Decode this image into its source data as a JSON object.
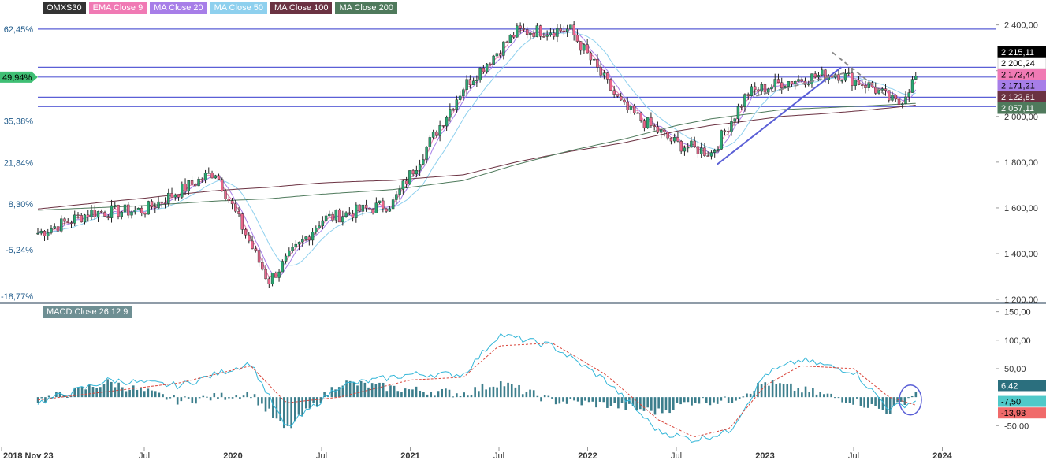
{
  "legend": [
    {
      "label": "OMXS30",
      "color": "#333333"
    },
    {
      "label": "EMA Close 9",
      "color": "#f07ab4"
    },
    {
      "label": "MA Close 20",
      "color": "#a77ee8"
    },
    {
      "label": "MA Close 50",
      "color": "#8ed0ee"
    },
    {
      "label": "MA Close 100",
      "color": "#6b3242"
    },
    {
      "label": "MA Close 200",
      "color": "#4f7a5c"
    }
  ],
  "macd_title": "MACD Close 26 12 9",
  "x_axis": {
    "ticks": [
      {
        "label": "2018 Nov 23",
        "bold": true
      },
      {
        "label": "Jul",
        "bold": false
      },
      {
        "label": "2020",
        "bold": true
      },
      {
        "label": "Jul",
        "bold": false
      },
      {
        "label": "2021",
        "bold": true
      },
      {
        "label": "Jul",
        "bold": false
      },
      {
        "label": "2022",
        "bold": true
      },
      {
        "label": "Jul",
        "bold": false
      },
      {
        "label": "2023",
        "bold": true
      },
      {
        "label": "Jul",
        "bold": false
      },
      {
        "label": "2024",
        "bold": true
      }
    ]
  },
  "price_axis": {
    "ticks": [
      "2 400,00",
      "2 200,00",
      "2 000,00",
      "1 800,00",
      "1 600,00",
      "1 400,00",
      "1 200,00"
    ],
    "tick_values": [
      2400,
      2200,
      2000,
      1800,
      1600,
      1400,
      1200
    ],
    "range": [
      1190,
      2440
    ]
  },
  "percent_axis": {
    "ticks": [
      "62,45%",
      "49,94%",
      "35,38%",
      "21,84%",
      "8,30%",
      "-5,24%",
      "-18,77%"
    ],
    "tick_values": [
      2382,
      2172,
      1980,
      1798,
      1617,
      1418,
      1214
    ],
    "current_label": "49,94%"
  },
  "price_badges": [
    {
      "label": "2 215,11",
      "value": 2215.11,
      "color": "#000000"
    },
    {
      "label": "2 200,24",
      "value": 2200.24,
      "color": "#ffffff"
    },
    {
      "label": "2 172,44",
      "value": 2172.44,
      "color": "#f07ab4"
    },
    {
      "label": "2 171,21",
      "value": 2171.21,
      "color": "#a77ee8"
    },
    {
      "label": "2 122,81",
      "value": 2122.81,
      "color": "#6b3242"
    },
    {
      "label": "2 057,11",
      "value": 2057.11,
      "color": "#4f7a5c"
    }
  ],
  "macd_axis": {
    "ticks": [
      "150,00",
      "100,00",
      "50,00",
      "-50,00"
    ],
    "tick_values": [
      150,
      100,
      50,
      -50
    ],
    "range": [
      -80,
      155
    ]
  },
  "macd_badges": [
    {
      "label": "6,42",
      "value": 6.42,
      "color": "#2b6f7e"
    },
    {
      "label": "-7,50",
      "value": -7.5,
      "color": "#4fc9c9"
    },
    {
      "label": "-13,93",
      "value": -13.93,
      "color": "#f06a6a"
    }
  ],
  "colors": {
    "up": "#2aa672",
    "down": "#e8658a",
    "hline": "#5a5fd6",
    "trend": "#5a5fd6",
    "macd": "#33b6d8",
    "signal": "#d9473c",
    "hist": "#3c7e8c",
    "grid": "#e8e8e8"
  },
  "chart_data": [
    {
      "type": "candlestick",
      "title": "OMXS30",
      "x_range": [
        "2018-11-23",
        "2024-01"
      ],
      "y_range": [
        1190,
        2440
      ],
      "horizontal_levels": [
        2382,
        2215,
        2172,
        2084,
        2043
      ],
      "key_points": {
        "x": [
          2018.9,
          2019.2,
          2019.5,
          2019.9,
          2020.2,
          2020.5,
          2020.9,
          2021.3,
          2021.6,
          2021.9,
          2022.2,
          2022.5,
          2022.7,
          2022.9,
          2023.1,
          2023.4,
          2023.6,
          2023.75,
          2023.85
        ],
        "close": [
          1490,
          1580,
          1590,
          1760,
          1280,
          1550,
          1620,
          2130,
          2370,
          2380,
          2040,
          1880,
          1840,
          2100,
          2150,
          2190,
          2130,
          2050,
          2172
        ],
        "ma200": [
          1590,
          1600,
          1610,
          1630,
          1640,
          1660,
          1680,
          1720,
          1790,
          1850,
          1900,
          1960,
          1990,
          2010,
          2030,
          2040,
          2047,
          2053,
          2057
        ]
      },
      "series": [
        {
          "name": "EMA Close 9",
          "last": 2172.44
        },
        {
          "name": "MA Close 20",
          "last": 2171.21
        },
        {
          "name": "MA Close 50",
          "last": 2200.24
        },
        {
          "name": "MA Close 100",
          "last": 2122.81
        },
        {
          "name": "MA Close 200",
          "last": 2057.11
        }
      ],
      "last_close": 2215.11
    },
    {
      "type": "line",
      "title": "MACD Close 26 12 9",
      "y_range": [
        -80,
        155
      ],
      "key_points": {
        "x": [
          2018.9,
          2019.3,
          2019.7,
          2020.1,
          2020.3,
          2020.6,
          2021.0,
          2021.3,
          2021.5,
          2021.8,
          2022.1,
          2022.4,
          2022.6,
          2022.8,
          2023.0,
          2023.2,
          2023.5,
          2023.7,
          2023.85
        ],
        "macd": [
          -10,
          30,
          20,
          60,
          -55,
          20,
          40,
          40,
          110,
          90,
          30,
          -60,
          -75,
          -60,
          40,
          65,
          45,
          -20,
          -7.5
        ],
        "signal": [
          -5,
          10,
          25,
          55,
          -10,
          0,
          30,
          35,
          90,
          95,
          40,
          -40,
          -70,
          -55,
          20,
          55,
          50,
          0,
          -13.93
        ]
      },
      "last_values": {
        "macd": -7.5,
        "signal": -13.93,
        "histogram": 6.42
      }
    }
  ]
}
